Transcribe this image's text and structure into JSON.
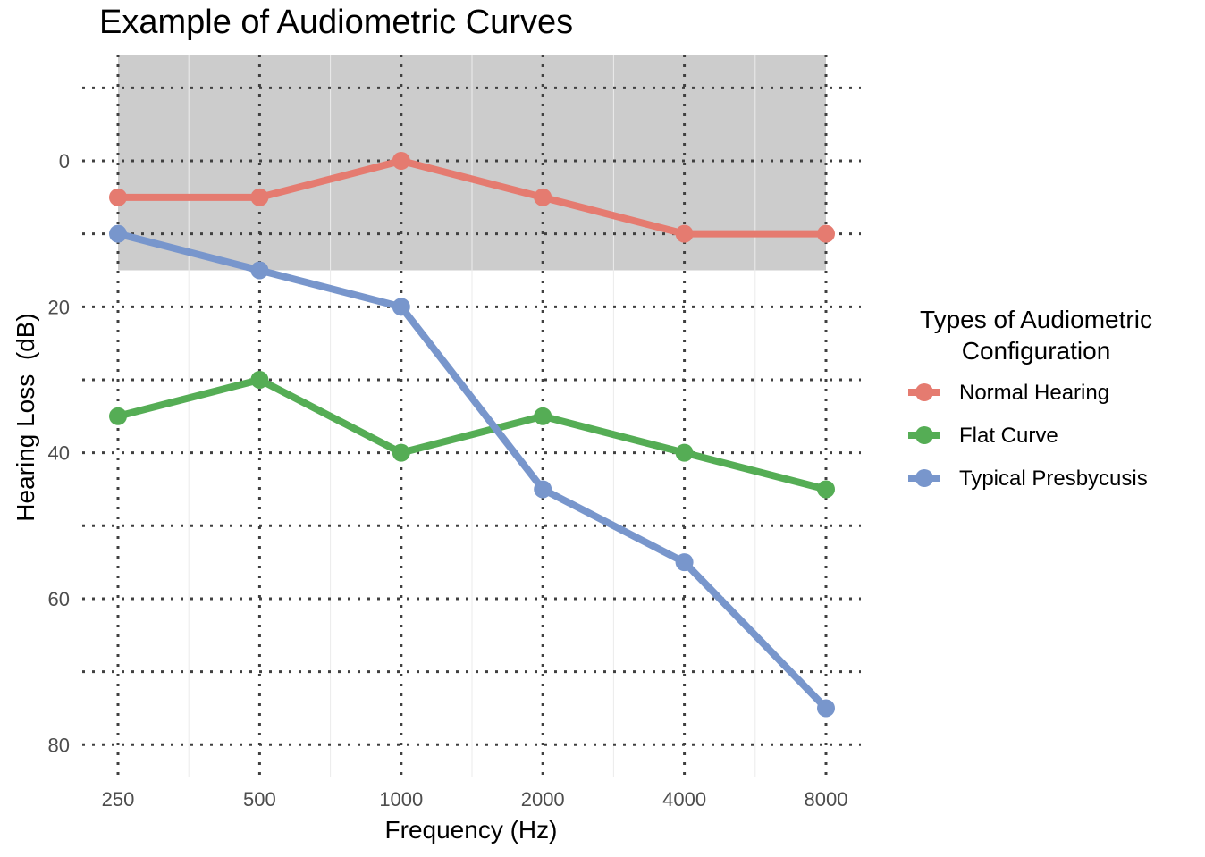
{
  "chart_data": {
    "type": "line",
    "title": "Example of Audiometric Curves",
    "xlabel": "Frequency (Hz)",
    "ylabel": "Hearing Loss  (dB)",
    "categories": [
      "250",
      "500",
      "1000",
      "2000",
      "4000",
      "8000"
    ],
    "y_tick_labels": [
      "0",
      "20",
      "40",
      "60",
      "80"
    ],
    "y_ticks": [
      0,
      20,
      40,
      60,
      80
    ],
    "y_gridlines": [
      -10,
      0,
      10,
      20,
      30,
      40,
      50,
      60,
      70,
      80
    ],
    "ylim": [
      -14.5,
      84.5
    ],
    "y_reversed": true,
    "grid": true,
    "normal_band": [
      -14.5,
      15
    ],
    "normal_band_color": "#cccccc",
    "legend": {
      "title_lines": [
        "Types of Audiometric",
        "Configuration"
      ],
      "position": "right"
    },
    "series": [
      {
        "name": "Normal Hearing",
        "color": "#e57b70",
        "values": [
          5,
          5,
          0,
          5,
          10,
          10
        ]
      },
      {
        "name": "Flat Curve",
        "color": "#55ad55",
        "values": [
          35,
          30,
          40,
          35,
          40,
          45
        ]
      },
      {
        "name": "Typical Presbycusis",
        "color": "#7896cc",
        "values": [
          10,
          15,
          20,
          45,
          55,
          75
        ]
      }
    ]
  }
}
